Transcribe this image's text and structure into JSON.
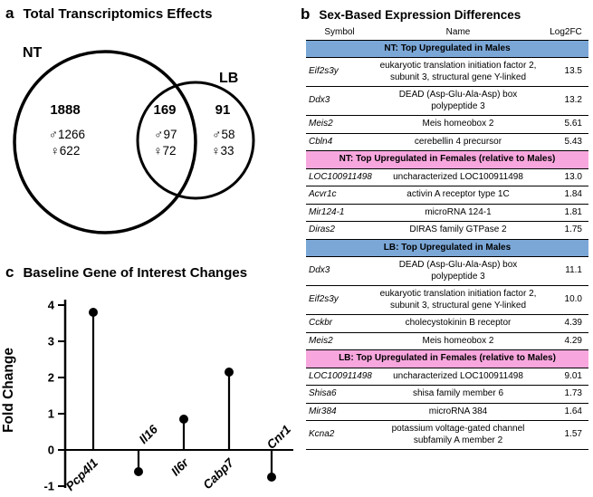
{
  "panel_a": {
    "label": "a",
    "title": "Total Transcriptomics Effects",
    "venn": {
      "left_set": "NT",
      "right_set": "LB",
      "left_only": {
        "total": "1888",
        "males": "♂1266",
        "females": "♀622"
      },
      "overlap": {
        "total": "169",
        "males": "♂97",
        "females": "♀72"
      },
      "right_only": {
        "total": "91",
        "males": "♂58",
        "females": "♀33"
      }
    }
  },
  "panel_b": {
    "label": "b",
    "title": "Sex-Based Expression Differences",
    "columns": [
      "Symbol",
      "Name",
      "Log2FC"
    ],
    "section_colors": {
      "males": "#7ba7d7",
      "females": "#f8a7de"
    },
    "sections": [
      {
        "header": "NT: Top Upregulated in Males",
        "type": "males",
        "rows": [
          {
            "symbol": "Eif2s3y",
            "name": "eukaryotic translation initiation factor 2, subunit 3, structural gene Y-linked",
            "log2fc": "13.5"
          },
          {
            "symbol": "Ddx3",
            "name": "DEAD (Asp-Glu-Ala-Asp) box polypeptide 3",
            "log2fc": "13.2"
          },
          {
            "symbol": "Meis2",
            "name": "Meis homeobox 2",
            "log2fc": "5.61"
          },
          {
            "symbol": "Cbln4",
            "name": "cerebellin 4 precursor",
            "log2fc": "5.43"
          }
        ]
      },
      {
        "header": "NT: Top Upregulated in Females (relative to Males)",
        "type": "females",
        "rows": [
          {
            "symbol": "LOC100911498",
            "name": "uncharacterized LOC100911498",
            "log2fc": "13.0"
          },
          {
            "symbol": "Acvr1c",
            "name": "activin A receptor type 1C",
            "log2fc": "1.84"
          },
          {
            "symbol": "Mir124-1",
            "name": "microRNA 124-1",
            "log2fc": "1.81"
          },
          {
            "symbol": "Diras2",
            "name": "DIRAS family GTPase 2",
            "log2fc": "1.75"
          }
        ]
      },
      {
        "header": "LB: Top Upregulated in Males",
        "type": "males",
        "rows": [
          {
            "symbol": "Ddx3",
            "name": "DEAD (Asp-Glu-Ala-Asp) box polypeptide 3",
            "log2fc": "11.1"
          },
          {
            "symbol": "Eif2s3y",
            "name": "eukaryotic translation initiation factor 2, subunit 3, structural gene Y-linked",
            "log2fc": "10.0"
          },
          {
            "symbol": "Cckbr",
            "name": "cholecystokinin B receptor",
            "log2fc": "4.39"
          },
          {
            "symbol": "Meis2",
            "name": "Meis homeobox 2",
            "log2fc": "4.29"
          }
        ]
      },
      {
        "header": "LB: Top Upregulated in Females (relative to Males)",
        "type": "females",
        "rows": [
          {
            "symbol": "LOC100911498",
            "name": "uncharacterized LOC100911498",
            "log2fc": "9.01"
          },
          {
            "symbol": "Shisa6",
            "name": "shisa family member 6",
            "log2fc": "1.73"
          },
          {
            "symbol": "Mir384",
            "name": "microRNA 384",
            "log2fc": "1.64"
          },
          {
            "symbol": "Kcna2",
            "name": "potassium voltage-gated channel subfamily A member 2",
            "log2fc": "1.57"
          }
        ]
      }
    ]
  },
  "panel_c": {
    "label": "c",
    "title": "Baseline Gene of Interest Changes"
  },
  "chart_data": [
    {
      "type": "venn",
      "title": "Total Transcriptomics Effects",
      "sets": [
        {
          "label": "NT",
          "unique_total": 1888,
          "unique_males": 1266,
          "unique_females": 622
        },
        {
          "label": "LB",
          "unique_total": 91,
          "unique_males": 58,
          "unique_females": 33
        }
      ],
      "intersection": {
        "total": 169,
        "males": 97,
        "females": 72
      }
    },
    {
      "type": "scatter",
      "style": "lollipop",
      "title": "Baseline Gene of Interest Changes",
      "categories": [
        "Pcp4l1",
        "Il16",
        "Il6r",
        "Cabp7",
        "Cnr1"
      ],
      "values": [
        3.8,
        -0.6,
        0.85,
        2.15,
        -0.75
      ],
      "xlabel": "",
      "ylabel": "Fold Change",
      "ylim": [
        -1,
        4
      ],
      "yticks": [
        4,
        3,
        2,
        1,
        0,
        -1
      ],
      "grid": false,
      "baseline": 0
    }
  ]
}
